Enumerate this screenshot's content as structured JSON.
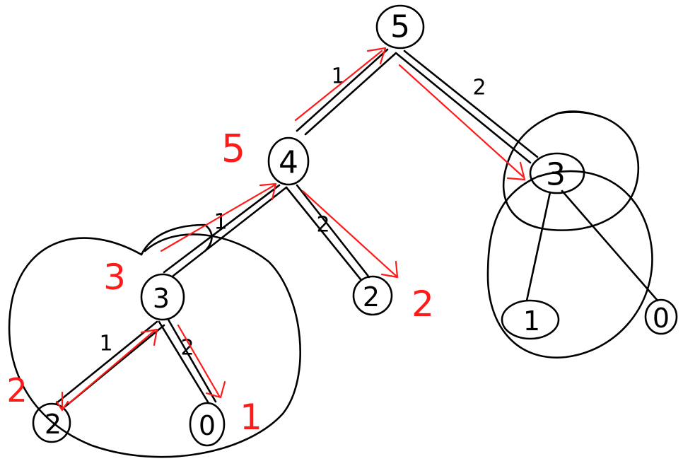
{
  "tree": {
    "nodes": {
      "root": "5",
      "mid": "4",
      "right": "3",
      "left": "3",
      "mid_child": "2",
      "right_left_child": "1",
      "right_right_child": "0",
      "left_left_child": "2",
      "left_right_child": "0"
    },
    "edges": {
      "root_mid": "1",
      "root_right": "2",
      "mid_left": "1",
      "mid_midchild": "2",
      "left_leftchild": "1",
      "left_rightchild": "2"
    }
  },
  "annotations": {
    "mid": "5",
    "left": "3",
    "mid_child": "2",
    "left_left_child": "2",
    "left_right_child": "1"
  },
  "colors": {
    "ink": "#000000",
    "annotation": "#ff1a1a",
    "background": "#ffffff"
  }
}
